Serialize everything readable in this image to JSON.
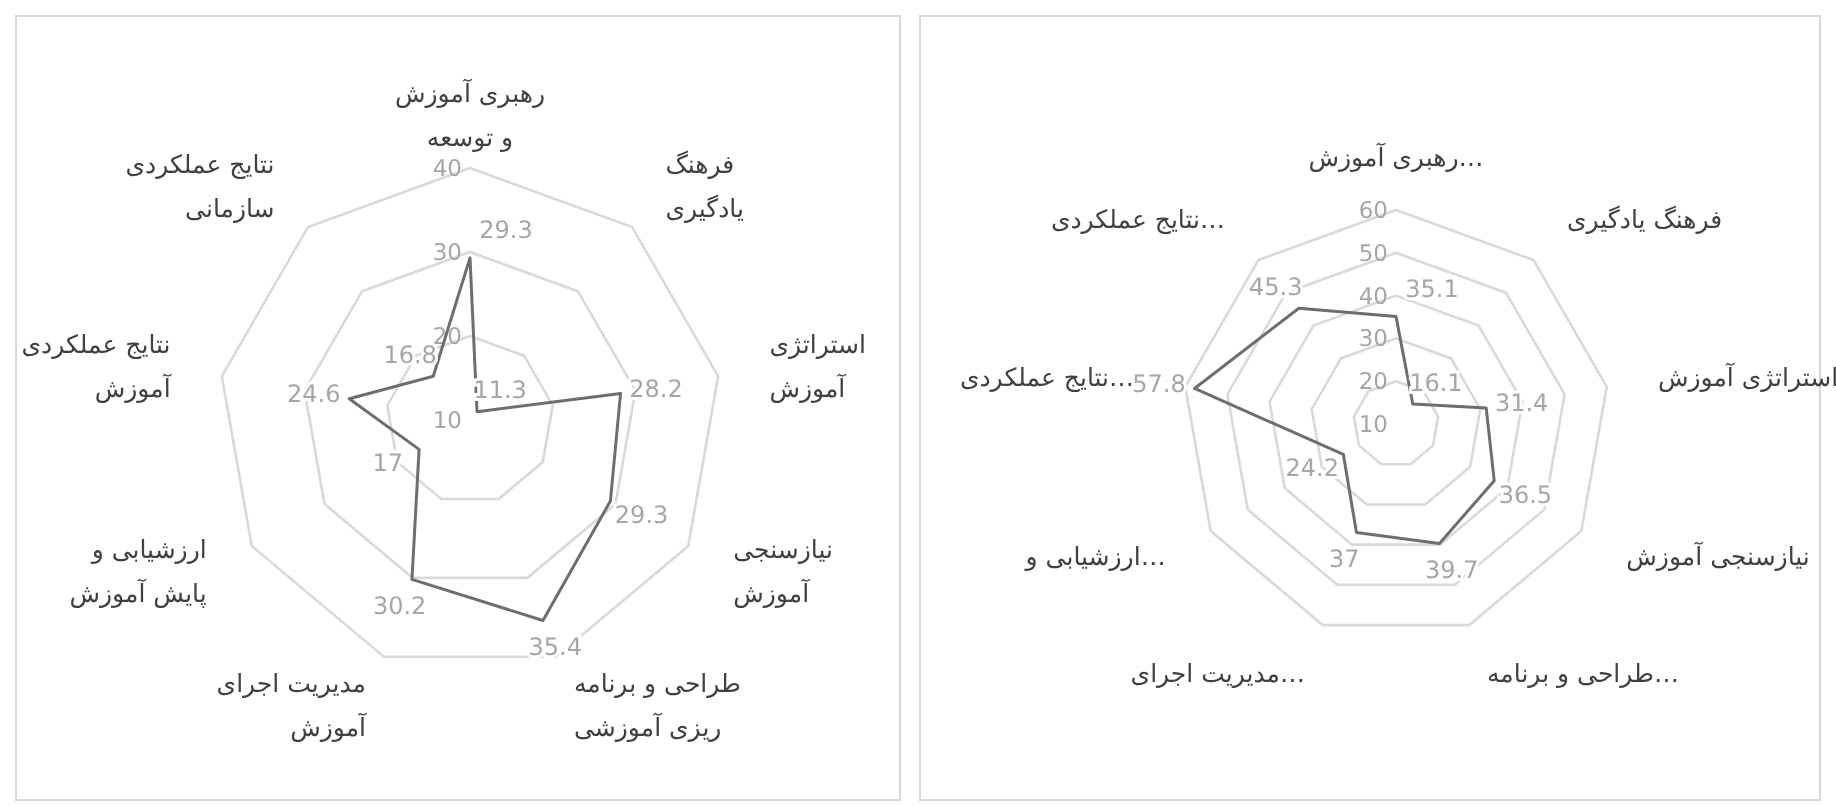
{
  "chart_data": [
    {
      "type": "radar",
      "categories": [
        "رهبری آموزش و توسعه",
        "فرهنگ یادگیری",
        "استراتژی آموزش",
        "نیازسنجی آموزش",
        "طراحی و برنامه ریزی آموزشی",
        "مدیریت اجرای آموزش",
        "ارزشیابی و پایش آموزش",
        "نتایج عملکردی آموزش",
        "نتایج عملکردی سازمانی"
      ],
      "series": [
        {
          "color": "#6e6e6e",
          "values": [
            29.3,
            11.3,
            28.2,
            29.3,
            35.4,
            30.2,
            17,
            24.6,
            16.8
          ]
        }
      ],
      "ylim": [
        10,
        40
      ],
      "yticks": [
        10,
        20,
        30,
        40
      ],
      "grid": true,
      "data_labels": true
    },
    {
      "type": "radar",
      "categories": [
        "رهبری آموزش…",
        "فرهنگ یادگیری",
        "استراتژی آموزش",
        "نیازسنجی آموزش",
        "طراحی و برنامه…",
        "مدیریت اجرای…",
        "ارزشیابی و…",
        "نتایج عملکردی…",
        "نتایج عملکردی…"
      ],
      "series": [
        {
          "color": "#6e6e6e",
          "values": [
            35.1,
            16.1,
            31.4,
            36.5,
            39.7,
            37,
            24.2,
            57.8,
            45.3
          ]
        }
      ],
      "ylim": [
        10,
        60
      ],
      "yticks": [
        10,
        20,
        30,
        40,
        50,
        60
      ],
      "grid": true,
      "data_labels": true
    }
  ]
}
